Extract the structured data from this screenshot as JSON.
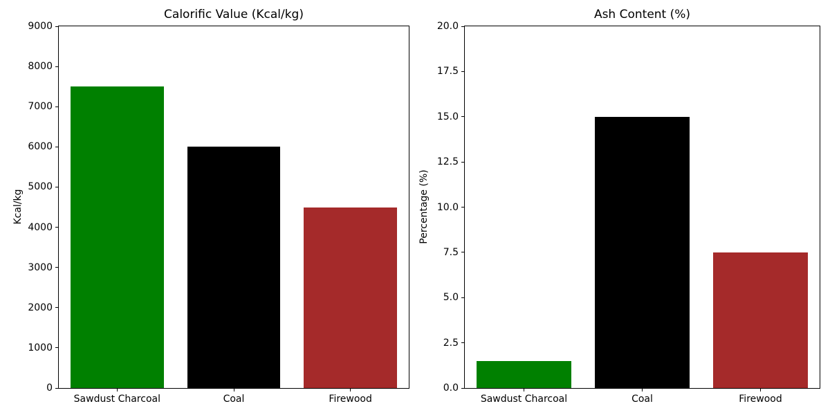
{
  "figure": {
    "background_color": "#ffffff",
    "text_color": "#000000"
  },
  "chart_data": [
    {
      "type": "bar",
      "title": "Calorific Value (Kcal/kg)",
      "xlabel": "",
      "ylabel": "Kcal/kg",
      "categories": [
        "Sawdust Charcoal",
        "Coal",
        "Firewood"
      ],
      "values": [
        7500,
        6000,
        4500
      ],
      "colors": [
        "#008000",
        "#000000",
        "#A52A2A"
      ],
      "ylim": [
        0,
        9000
      ],
      "ytick_step": 1000,
      "ytick_format": "integer",
      "ytick_labels": [
        "0",
        "1000",
        "2000",
        "3000",
        "4000",
        "5000",
        "6000",
        "7000",
        "8000",
        "9000"
      ],
      "grid": false,
      "legend": "none"
    },
    {
      "type": "bar",
      "title": "Ash Content (%)",
      "xlabel": "",
      "ylabel": "Percentage (%)",
      "categories": [
        "Sawdust Charcoal",
        "Coal",
        "Firewood"
      ],
      "values": [
        1.5,
        15,
        7.5
      ],
      "colors": [
        "#008000",
        "#000000",
        "#A52A2A"
      ],
      "ylim": [
        0,
        20
      ],
      "ytick_step": 2.5,
      "ytick_format": "one_decimal",
      "ytick_labels": [
        "0.0",
        "2.5",
        "5.0",
        "7.5",
        "10.0",
        "12.5",
        "15.0",
        "17.5",
        "20.0"
      ],
      "grid": false,
      "legend": "none"
    }
  ]
}
